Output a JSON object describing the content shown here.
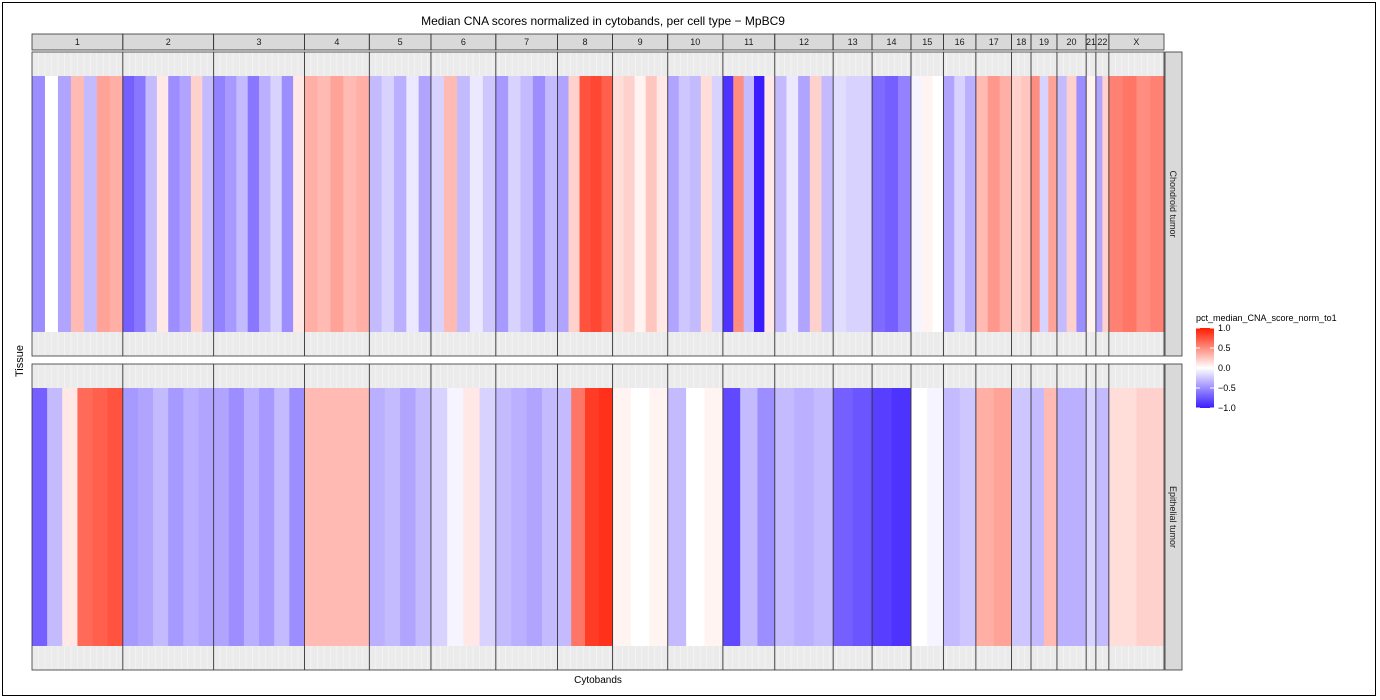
{
  "chart_data": {
    "type": "heatmap",
    "title": "Median CNA scores normalized in cytobands, per cell type − MpBC9",
    "xlabel": "Cytobands",
    "ylabel": "Tissue",
    "legend": {
      "title": "pct_median_CNA_score_norm_to1",
      "ticks": [
        "1.0",
        "0.5",
        "0.0",
        "−0.5",
        "−1.0"
      ],
      "tick_values": [
        1.0,
        0.5,
        0.0,
        -0.5,
        -1.0
      ],
      "placement": "right",
      "colors": {
        "low": "#3a1cff",
        "mid": "#ffffff",
        "high": "#ff1a00"
      }
    },
    "chromosomes": [
      "1",
      "2",
      "3",
      "4",
      "5",
      "6",
      "7",
      "8",
      "9",
      "10",
      "11",
      "12",
      "13",
      "14",
      "15",
      "16",
      "17",
      "18",
      "19",
      "20",
      "21",
      "22",
      "X"
    ],
    "chromosome_band_counts": [
      28,
      28,
      28,
      20,
      19,
      20,
      19,
      17,
      17,
      17,
      16,
      18,
      12,
      12,
      10,
      10,
      11,
      6,
      8,
      9,
      3,
      4,
      17
    ],
    "rows": [
      "Chondroid tumor",
      "Epithelial tumor"
    ],
    "series": [
      {
        "name": "Chondroid tumor",
        "chromosome_profiles": [
          [
            -0.5,
            0.0,
            -0.4,
            0.3,
            -0.3,
            0.4,
            0.35
          ],
          [
            -0.7,
            -0.6,
            -0.3,
            0.1,
            -0.5,
            -0.4,
            0.2,
            -0.3
          ],
          [
            -0.55,
            -0.45,
            -0.3,
            -0.6,
            -0.35,
            -0.2,
            -0.5,
            0.1
          ],
          [
            0.35,
            0.3,
            0.4,
            0.3,
            0.35
          ],
          [
            -0.3,
            -0.2,
            -0.35,
            -0.1,
            -0.4
          ],
          [
            -0.2,
            0.3,
            -0.3,
            -0.1,
            -0.25
          ],
          [
            -0.45,
            -0.2,
            -0.3,
            -0.5,
            -0.3
          ],
          [
            -0.4,
            0.2,
            0.75,
            0.8,
            0.7
          ],
          [
            0.15,
            0.2,
            0.05,
            0.25,
            0.1
          ],
          [
            -0.4,
            -0.25,
            -0.3,
            0.15,
            -0.2
          ],
          [
            -0.9,
            0.5,
            -0.3,
            -1.0,
            0.1
          ],
          [
            -0.3,
            -0.1,
            -0.4,
            0.2,
            -0.3
          ],
          [
            -0.15,
            -0.2,
            -0.2
          ],
          [
            -0.65,
            -0.7,
            -0.55
          ],
          [
            -0.05,
            0.05,
            0.0
          ],
          [
            -0.4,
            -0.2,
            -0.35
          ],
          [
            0.3,
            0.45,
            0.35
          ],
          [
            0.2,
            0.25
          ],
          [
            0.5,
            -0.2,
            0.4
          ],
          [
            -0.3,
            0.2,
            -0.5
          ],
          [
            0.05
          ],
          [
            -0.4,
            0.2
          ],
          [
            0.55,
            0.6,
            0.5,
            0.55
          ]
        ]
      },
      {
        "name": "Epithelial tumor",
        "chromosome_profiles": [
          [
            -0.7,
            -0.3,
            0.1,
            0.65,
            0.7,
            0.75
          ],
          [
            -0.45,
            -0.4,
            -0.3,
            -0.45,
            -0.35,
            -0.4
          ],
          [
            -0.4,
            -0.5,
            -0.35,
            -0.45,
            -0.3,
            -0.5
          ],
          [
            0.3,
            0.3,
            0.3,
            0.3
          ],
          [
            -0.35,
            -0.3,
            -0.4,
            -0.3
          ],
          [
            -0.2,
            -0.05,
            0.1,
            -0.2
          ],
          [
            -0.3,
            -0.35,
            -0.4,
            -0.3
          ],
          [
            -0.3,
            0.6,
            0.85,
            0.9
          ],
          [
            0.05,
            0.0,
            0.05
          ],
          [
            -0.3,
            0.0,
            0.05
          ],
          [
            -0.8,
            -0.3,
            -0.5
          ],
          [
            -0.3,
            -0.35,
            -0.3
          ],
          [
            -0.7,
            -0.75
          ],
          [
            -0.85,
            -0.9
          ],
          [
            0.0,
            -0.05
          ],
          [
            -0.3,
            -0.25
          ],
          [
            0.35,
            0.4
          ],
          [
            -0.25
          ],
          [
            -0.3,
            0.3
          ],
          [
            -0.35
          ],
          [
            -0.2
          ],
          [
            -0.3
          ],
          [
            0.15,
            0.2
          ]
        ]
      }
    ],
    "value_range": [
      -1.0,
      1.0
    ],
    "grid": false
  }
}
